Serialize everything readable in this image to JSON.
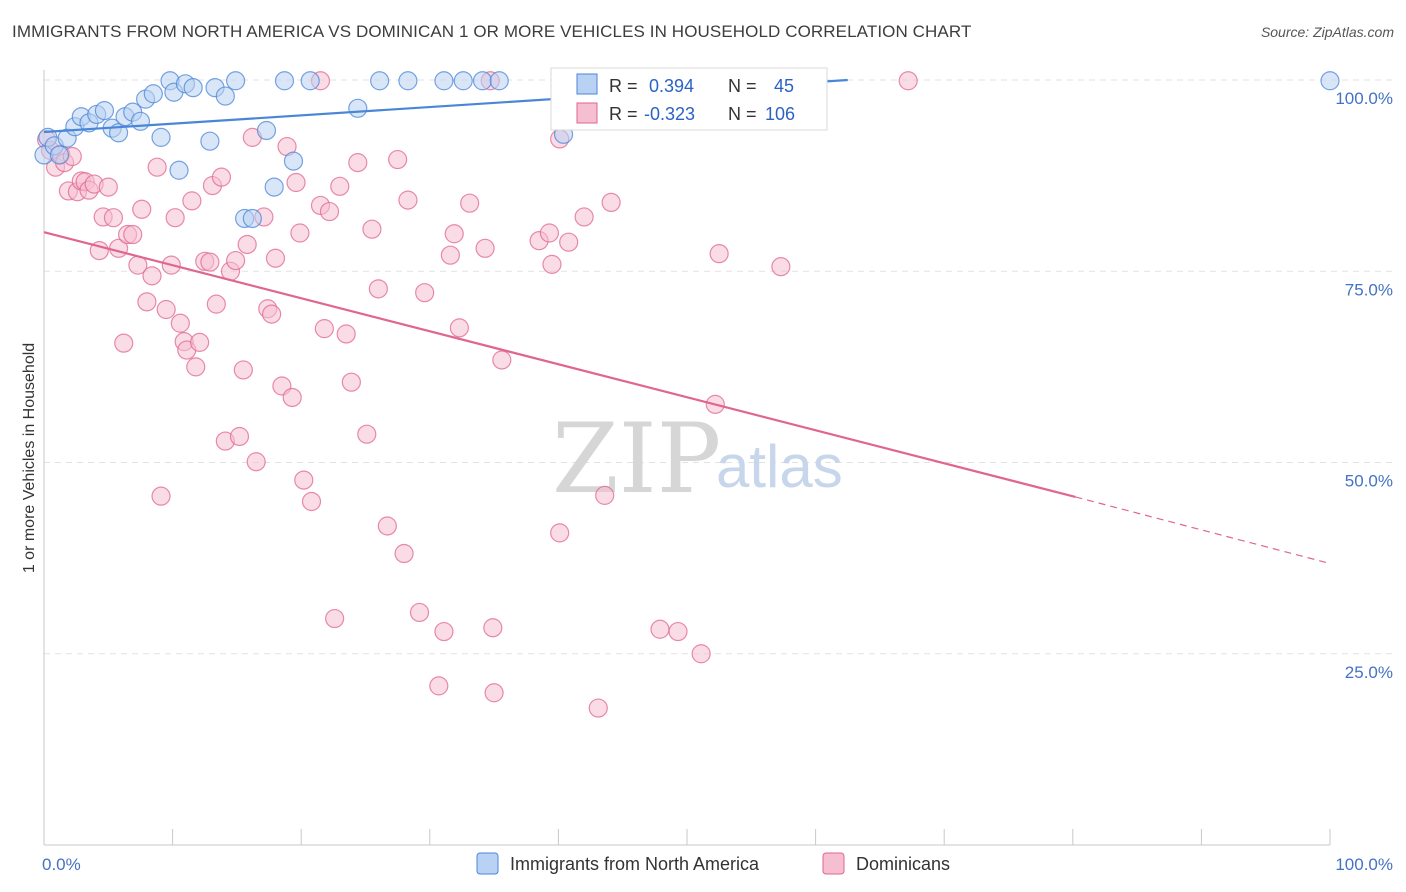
{
  "title": "IMMIGRANTS FROM NORTH AMERICA VS DOMINICAN 1 OR MORE VEHICLES IN HOUSEHOLD CORRELATION CHART",
  "source": "Source: ZipAtlas.com",
  "colors": {
    "blue": "#4a86d8",
    "blue_fill": "#b9d1f2",
    "pink": "#e0668f",
    "pink_fill": "#f5bfd1",
    "tick_blue": "#4472c4"
  },
  "chart_data": {
    "type": "scatter",
    "ylabel": "1 or more Vehicles in Household",
    "xlim": [
      0,
      100
    ],
    "ylim": [
      0,
      100
    ],
    "y_ticks": [
      {
        "value": 100,
        "label": "100.0%"
      },
      {
        "value": 75,
        "label": "75.0%"
      },
      {
        "value": 50,
        "label": "50.0%"
      },
      {
        "value": 25,
        "label": "25.0%"
      }
    ],
    "x_tick_labels": {
      "min": "0.0%",
      "max": "100.0%"
    },
    "legend": {
      "r_label": "R =",
      "n_label": "N =",
      "series": [
        {
          "r": " 0.394",
          "n": "45"
        },
        {
          "r": "-0.323",
          "n": "106"
        }
      ]
    },
    "watermark": {
      "zip": "ZIP",
      "atlas": "atlas"
    },
    "series": [
      {
        "name": "Immigrants from North America",
        "trend": {
          "x0": 0,
          "y0": 93.2,
          "x1": 62.5,
          "y1": 100
        },
        "points": [
          [
            0,
            90.2
          ],
          [
            0.3,
            92.5
          ],
          [
            0.8,
            91.4
          ],
          [
            1.2,
            90.2
          ],
          [
            1.8,
            92.4
          ],
          [
            2.4,
            93.9
          ],
          [
            2.9,
            95.2
          ],
          [
            3.5,
            94.4
          ],
          [
            4.1,
            95.5
          ],
          [
            4.7,
            96.0
          ],
          [
            5.3,
            93.7
          ],
          [
            5.8,
            93.1
          ],
          [
            6.3,
            95.2
          ],
          [
            6.9,
            95.8
          ],
          [
            7.5,
            94.6
          ],
          [
            7.9,
            97.5
          ],
          [
            8.5,
            98.2
          ],
          [
            9.1,
            92.5
          ],
          [
            9.8,
            99.9
          ],
          [
            10.1,
            98.4
          ],
          [
            10.5,
            88.2
          ],
          [
            11.0,
            99.5
          ],
          [
            11.6,
            99.0
          ],
          [
            12.9,
            92.0
          ],
          [
            13.3,
            99.0
          ],
          [
            14.1,
            97.9
          ],
          [
            14.9,
            99.9
          ],
          [
            15.6,
            81.9
          ],
          [
            16.2,
            81.9
          ],
          [
            17.3,
            93.4
          ],
          [
            17.9,
            86.0
          ],
          [
            18.7,
            99.9
          ],
          [
            19.4,
            89.4
          ],
          [
            20.7,
            99.9
          ],
          [
            24.4,
            96.3
          ],
          [
            26.1,
            99.9
          ],
          [
            28.3,
            99.9
          ],
          [
            31.1,
            99.9
          ],
          [
            32.6,
            99.9
          ],
          [
            34.1,
            99.9
          ],
          [
            35.4,
            99.9
          ],
          [
            40.4,
            92.9
          ],
          [
            48.5,
            99.9
          ],
          [
            56.0,
            99.9
          ],
          [
            100,
            99.9
          ]
        ]
      },
      {
        "name": "Dominicans",
        "trend": {
          "x0": 0,
          "y0": 80.1,
          "x1": 80.2,
          "y1": 45.5,
          "x_dash_end": 100,
          "y_dash_end": 36.8
        },
        "points": [
          [
            0.2,
            92.2
          ],
          [
            0.5,
            90.8
          ],
          [
            0.9,
            88.6
          ],
          [
            1.3,
            90.3
          ],
          [
            1.6,
            89.2
          ],
          [
            1.9,
            85.5
          ],
          [
            2.2,
            90.0
          ],
          [
            2.6,
            85.4
          ],
          [
            2.9,
            86.8
          ],
          [
            3.2,
            86.7
          ],
          [
            3.5,
            85.6
          ],
          [
            3.9,
            86.4
          ],
          [
            4.3,
            77.7
          ],
          [
            4.6,
            82.1
          ],
          [
            5.0,
            86.0
          ],
          [
            5.4,
            82.0
          ],
          [
            5.8,
            78.0
          ],
          [
            6.2,
            65.6
          ],
          [
            6.5,
            79.8
          ],
          [
            6.9,
            79.8
          ],
          [
            7.3,
            75.8
          ],
          [
            7.6,
            83.1
          ],
          [
            8.0,
            71.0
          ],
          [
            8.4,
            74.4
          ],
          [
            8.8,
            88.6
          ],
          [
            9.1,
            45.6
          ],
          [
            9.5,
            70.0
          ],
          [
            9.9,
            75.8
          ],
          [
            10.2,
            82.0
          ],
          [
            10.6,
            68.2
          ],
          [
            10.9,
            65.8
          ],
          [
            11.1,
            64.7
          ],
          [
            11.5,
            84.2
          ],
          [
            11.8,
            62.5
          ],
          [
            12.1,
            65.7
          ],
          [
            12.5,
            76.3
          ],
          [
            12.9,
            76.2
          ],
          [
            13.1,
            86.2
          ],
          [
            13.4,
            70.7
          ],
          [
            13.8,
            87.3
          ],
          [
            14.1,
            52.8
          ],
          [
            14.5,
            75.0
          ],
          [
            14.9,
            76.4
          ],
          [
            15.2,
            53.4
          ],
          [
            15.5,
            62.1
          ],
          [
            15.8,
            78.5
          ],
          [
            16.2,
            92.5
          ],
          [
            16.5,
            50.1
          ],
          [
            17.1,
            82.1
          ],
          [
            17.4,
            70.1
          ],
          [
            17.7,
            69.4
          ],
          [
            18.0,
            76.7
          ],
          [
            18.5,
            60.0
          ],
          [
            18.9,
            91.3
          ],
          [
            19.3,
            58.5
          ],
          [
            19.6,
            86.6
          ],
          [
            19.9,
            80.0
          ],
          [
            20.2,
            47.7
          ],
          [
            20.8,
            44.9
          ],
          [
            21.5,
            83.6
          ],
          [
            21.8,
            67.5
          ],
          [
            22.2,
            82.8
          ],
          [
            22.6,
            29.6
          ],
          [
            23.0,
            86.1
          ],
          [
            23.5,
            66.8
          ],
          [
            23.9,
            60.5
          ],
          [
            24.4,
            89.2
          ],
          [
            25.1,
            53.7
          ],
          [
            25.5,
            80.5
          ],
          [
            26.0,
            72.7
          ],
          [
            26.7,
            41.7
          ],
          [
            27.5,
            89.6
          ],
          [
            28.0,
            38.1
          ],
          [
            28.3,
            84.3
          ],
          [
            29.2,
            30.4
          ],
          [
            29.6,
            72.2
          ],
          [
            30.7,
            20.8
          ],
          [
            31.1,
            27.9
          ],
          [
            31.6,
            77.1
          ],
          [
            31.9,
            79.9
          ],
          [
            32.3,
            67.6
          ],
          [
            33.1,
            83.9
          ],
          [
            34.3,
            78.0
          ],
          [
            34.9,
            28.4
          ],
          [
            35.0,
            19.9
          ],
          [
            35.6,
            63.4
          ],
          [
            38.5,
            79.0
          ],
          [
            39.3,
            80.0
          ],
          [
            39.5,
            75.9
          ],
          [
            40.1,
            40.8
          ],
          [
            40.1,
            92.3
          ],
          [
            40.8,
            78.8
          ],
          [
            42.0,
            82.1
          ],
          [
            43.1,
            17.9
          ],
          [
            43.6,
            45.7
          ],
          [
            44.1,
            84.0
          ],
          [
            47.9,
            28.2
          ],
          [
            49.3,
            27.9
          ],
          [
            51.1,
            25.0
          ],
          [
            52.2,
            57.6
          ],
          [
            52.5,
            77.3
          ],
          [
            57.3,
            75.6
          ],
          [
            67.2,
            99.9
          ],
          [
            21.5,
            99.9
          ],
          [
            34.7,
            99.9
          ],
          [
            40.8,
            99.9
          ]
        ]
      }
    ]
  },
  "bottom_legend": [
    "Immigrants from North America",
    "Dominicans"
  ]
}
